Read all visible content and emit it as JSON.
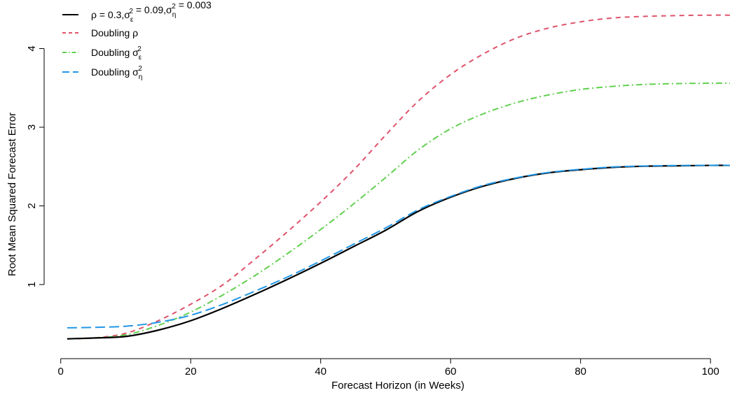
{
  "chart_data": {
    "type": "line",
    "xlabel": "Forecast Horizon (in Weeks)",
    "ylabel": "Root Mean Squared Forecast Error",
    "xlim": [
      1,
      103
    ],
    "ylim": [
      0.2,
      4.6
    ],
    "xticks": [
      0,
      20,
      40,
      60,
      80,
      100
    ],
    "yticks": [
      1,
      2,
      3,
      4
    ],
    "grid": false,
    "legend_placement": "top-left",
    "series": [
      {
        "name": "ρ = 0.3,σε2 = 0.09,ση2 = 0.003",
        "legend_parts": {
          "base": "ρ = 0.3,σ",
          "sub1": "ε",
          "sup1": "2",
          "mid": " = 0.09,σ",
          "sub2": "η",
          "sup2": "2",
          "end": " = 0.003"
        },
        "color": "#000000",
        "dash": "solid",
        "x": [
          1,
          5,
          10,
          15,
          20,
          25,
          30,
          35,
          40,
          45,
          50,
          55,
          60,
          65,
          70,
          75,
          80,
          85,
          90,
          95,
          100,
          103
        ],
        "y": [
          0.31,
          0.32,
          0.34,
          0.42,
          0.54,
          0.7,
          0.88,
          1.07,
          1.27,
          1.48,
          1.69,
          1.93,
          2.11,
          2.25,
          2.35,
          2.42,
          2.46,
          2.49,
          2.505,
          2.51,
          2.515,
          2.515
        ]
      },
      {
        "name": "Doubling ρ",
        "legend_parts": {
          "base": "Doubling ρ"
        },
        "color": "#DF536B",
        "dash": "7,6",
        "x": [
          1,
          5,
          10,
          15,
          20,
          25,
          30,
          35,
          40,
          45,
          50,
          55,
          60,
          65,
          70,
          75,
          80,
          85,
          90,
          95,
          100,
          103
        ],
        "y": [
          0.31,
          0.32,
          0.38,
          0.54,
          0.75,
          1.0,
          1.33,
          1.68,
          2.05,
          2.45,
          2.9,
          3.33,
          3.67,
          3.93,
          4.13,
          4.26,
          4.34,
          4.39,
          4.41,
          4.42,
          4.425,
          4.425
        ]
      },
      {
        "name": "Doubling σε2",
        "legend_parts": {
          "base": "Doubling σ",
          "sub1": "ε",
          "sup1": "2"
        },
        "color": "#61D04F",
        "dash": "9,4,2,4",
        "x": [
          1,
          5,
          10,
          15,
          20,
          25,
          30,
          35,
          40,
          45,
          50,
          55,
          60,
          65,
          70,
          75,
          80,
          85,
          90,
          95,
          100,
          103
        ],
        "y": [
          0.31,
          0.32,
          0.36,
          0.48,
          0.65,
          0.87,
          1.12,
          1.4,
          1.7,
          2.02,
          2.36,
          2.71,
          2.98,
          3.17,
          3.31,
          3.41,
          3.48,
          3.52,
          3.545,
          3.555,
          3.56,
          3.56
        ]
      },
      {
        "name": "Doubling ση2",
        "legend_parts": {
          "base": "Doubling σ",
          "sub1": "η",
          "sup1": "2"
        },
        "color": "#2297E6",
        "dash": "14,6",
        "x": [
          1,
          5,
          10,
          15,
          20,
          25,
          30,
          35,
          40,
          45,
          50,
          55,
          60,
          65,
          70,
          75,
          80,
          85,
          90,
          95,
          100,
          103
        ],
        "y": [
          0.45,
          0.455,
          0.47,
          0.52,
          0.61,
          0.75,
          0.92,
          1.1,
          1.3,
          1.51,
          1.72,
          1.95,
          2.12,
          2.26,
          2.355,
          2.425,
          2.465,
          2.495,
          2.508,
          2.513,
          2.516,
          2.516
        ]
      }
    ]
  }
}
